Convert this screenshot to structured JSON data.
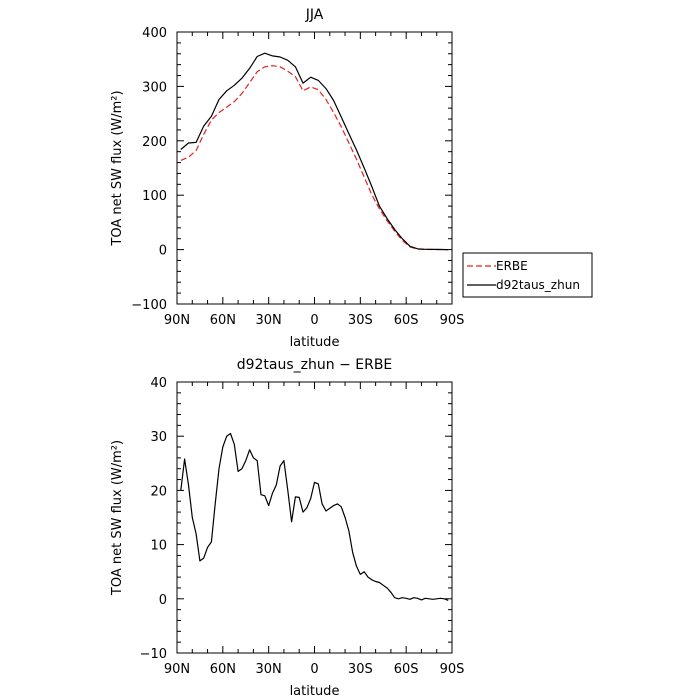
{
  "chart_data": [
    {
      "type": "line",
      "title": "JJA",
      "xlabel": "latitude",
      "ylabel": "TOA net SW flux (W/m²)",
      "xlim": [
        90,
        -90
      ],
      "ylim": [
        -100,
        400
      ],
      "x_tick_values": [
        90,
        60,
        30,
        0,
        -30,
        -60,
        -90
      ],
      "x_tick_labels": [
        "90N",
        "60N",
        "30N",
        "0",
        "30S",
        "60S",
        "90S"
      ],
      "y_tick_values": [
        -100,
        0,
        100,
        200,
        300,
        400
      ],
      "y_tick_labels": [
        "−100",
        "0",
        "100",
        "200",
        "300",
        "400"
      ],
      "grid": false,
      "legend": "right",
      "series": [
        {
          "name": "ERBE",
          "color": "#e8201e",
          "dash": "dashed",
          "x": [
            87.5,
            82.5,
            77.5,
            72.5,
            67.5,
            62.5,
            57.5,
            52.5,
            47.5,
            42.5,
            37.5,
            32.5,
            27.5,
            22.5,
            17.5,
            12.5,
            7.5,
            2.5,
            -2.5,
            -7.5,
            -12.5,
            -17.5,
            -22.5,
            -27.5,
            -32.5,
            -37.5,
            -42.5,
            -47.5,
            -52.5,
            -57.5,
            -62.5,
            -67.5,
            -72.5,
            -77.5,
            -82.5,
            -87.5
          ],
          "y": [
            164,
            170,
            182,
            212,
            238,
            252,
            262,
            272,
            287,
            307,
            327,
            336,
            338,
            336,
            328,
            318,
            292,
            299,
            294,
            276,
            252,
            226,
            196,
            166,
            133,
            101,
            75,
            53,
            34,
            17,
            5,
            1,
            0.4,
            0.2,
            0.1,
            0
          ]
        },
        {
          "name": "d92taus_zhun",
          "color": "#000000",
          "dash": "solid",
          "x": [
            87.5,
            82.5,
            77.5,
            72.5,
            67.5,
            62.5,
            57.5,
            52.5,
            47.5,
            42.5,
            37.5,
            32.5,
            27.5,
            22.5,
            17.5,
            12.5,
            7.5,
            2.5,
            -2.5,
            -7.5,
            -12.5,
            -17.5,
            -22.5,
            -27.5,
            -32.5,
            -37.5,
            -42.5,
            -47.5,
            -52.5,
            -57.5,
            -62.5,
            -67.5,
            -72.5,
            -77.5,
            -82.5,
            -87.5
          ],
          "y": [
            184,
            196,
            197,
            227,
            245,
            276,
            292,
            302,
            315,
            333,
            355,
            361,
            356,
            354,
            348,
            336,
            306,
            317,
            311,
            296,
            274,
            244,
            213,
            183,
            150,
            116,
            80,
            57,
            37,
            20,
            6,
            1.5,
            0.5,
            0.3,
            0.2,
            0
          ]
        }
      ]
    },
    {
      "type": "line",
      "title": "d92taus_zhun − ERBE",
      "xlabel": "latitude",
      "ylabel": "TOA net SW flux (W/m²)",
      "xlim": [
        90,
        -90
      ],
      "ylim": [
        -10,
        40
      ],
      "x_tick_values": [
        90,
        60,
        30,
        0,
        -30,
        -60,
        -90
      ],
      "x_tick_labels": [
        "90N",
        "60N",
        "30N",
        "0",
        "30S",
        "60S",
        "90S"
      ],
      "y_tick_values": [
        -10,
        0,
        10,
        20,
        30,
        40
      ],
      "y_tick_labels": [
        "−10",
        "0",
        "10",
        "20",
        "30",
        "40"
      ],
      "grid": false,
      "series": [
        {
          "color": "#000000",
          "dash": "solid",
          "x": [
            87.5,
            85.0,
            82.5,
            80.0,
            77.5,
            75.0,
            72.5,
            70.0,
            67.5,
            65.0,
            62.5,
            60.0,
            57.5,
            55.0,
            52.5,
            50.0,
            47.5,
            45.0,
            42.5,
            40.0,
            37.5,
            35.0,
            32.5,
            30.0,
            27.5,
            25.0,
            22.5,
            20.0,
            17.5,
            15.0,
            12.5,
            10.0,
            7.5,
            5.0,
            2.5,
            0.0,
            -2.5,
            -5.0,
            -7.5,
            -10.0,
            -12.5,
            -15.0,
            -17.5,
            -20.0,
            -22.5,
            -25.0,
            -27.5,
            -30.0,
            -32.5,
            -35.0,
            -37.5,
            -40.0,
            -42.5,
            -45.0,
            -47.5,
            -50.0,
            -52.5,
            -55.0,
            -57.5,
            -60.0,
            -62.5,
            -65.0,
            -67.5,
            -70.0,
            -72.5,
            -75.0,
            -77.5,
            -80.0,
            -82.5,
            -85.0,
            -87.5
          ],
          "y": [
            20,
            25.8,
            21,
            15,
            12,
            7,
            7.5,
            9.5,
            10.5,
            17.5,
            24,
            28,
            30,
            30.5,
            28.5,
            23.5,
            24,
            25.5,
            27.5,
            26,
            25.5,
            19.2,
            19,
            17.2,
            19.5,
            21,
            24.5,
            25.5,
            20,
            14.2,
            18.8,
            18.7,
            16,
            16.8,
            18.5,
            21.5,
            21.2,
            17.5,
            16.2,
            16.7,
            17.2,
            17.5,
            17,
            15,
            12.5,
            8.5,
            6,
            4.5,
            5,
            4,
            3.5,
            3.2,
            3,
            2.5,
            2,
            1.2,
            0.2,
            0,
            0.2,
            0.1,
            -0.1,
            0.2,
            0.1,
            -0.2,
            0.1,
            0,
            -0.1,
            0,
            0.1,
            0,
            -0.3
          ]
        }
      ]
    }
  ]
}
